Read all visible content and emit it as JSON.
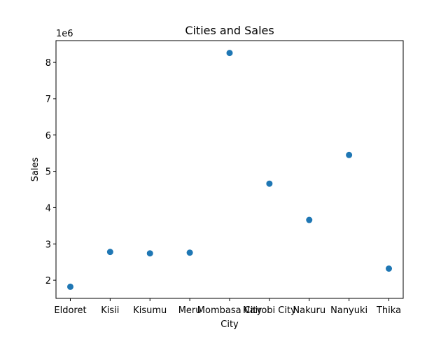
{
  "chart_data": {
    "type": "scatter",
    "title": "Cities and Sales",
    "xlabel": "City",
    "ylabel": "Sales",
    "y_offset_label": "1e6",
    "categories": [
      "Eldoret",
      "Kisii",
      "Kisumu",
      "Meru",
      "Mombasa City",
      "Nairobi City",
      "Nakuru",
      "Nanyuki",
      "Thika"
    ],
    "x_tick_labels": [
      "Eldoret",
      "Kisii",
      "Kisumu",
      "Meru",
      "Mombasa City",
      "Nairobi City",
      "Nakuru",
      "Nanyuki",
      "Thika"
    ],
    "values": [
      1820000,
      2780000,
      2740000,
      2760000,
      8260000,
      4660000,
      3660000,
      5450000,
      2320000
    ],
    "ylim": [
      1500000,
      8600000
    ],
    "y_ticks": [
      2000000,
      3000000,
      4000000,
      5000000,
      6000000,
      7000000,
      8000000
    ],
    "y_tick_labels": [
      "2",
      "3",
      "4",
      "5",
      "6",
      "7",
      "8"
    ],
    "grid": false,
    "marker_color": "#1f77b4"
  }
}
